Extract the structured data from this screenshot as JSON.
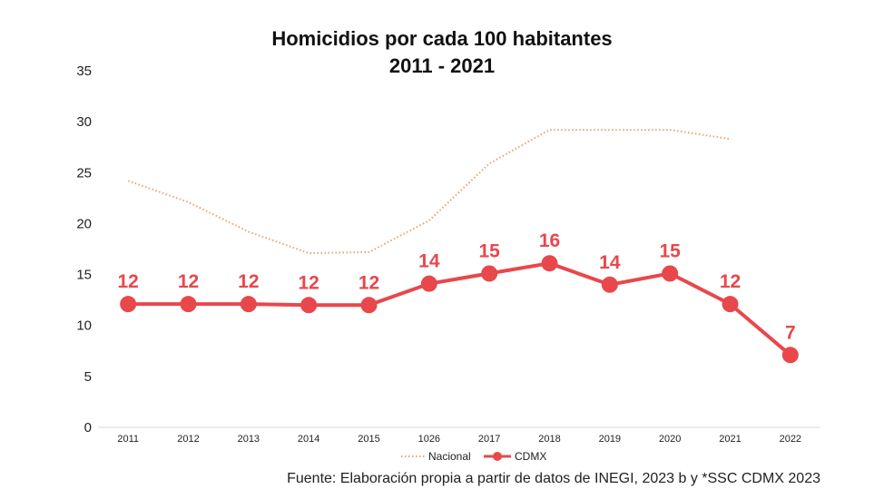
{
  "chart_data": {
    "type": "line",
    "title": "Homicidios por cada 100 habitantes",
    "subtitle": "2011 - 2021",
    "categories": [
      "2011",
      "2012",
      "2013",
      "2014",
      "2015",
      "1026",
      "2017",
      "2018",
      "2019",
      "2020",
      "2021",
      "2022"
    ],
    "ylim": [
      0,
      35
    ],
    "yticks": [
      0,
      5,
      10,
      15,
      20,
      25,
      30,
      35
    ],
    "grid": false,
    "legend_position": "bottom",
    "series": [
      {
        "name": "Nacional",
        "style": "dotted",
        "color": "#E8A46E",
        "values": [
          24.2,
          22.1,
          19.2,
          17.1,
          17.2,
          20.3,
          25.9,
          29.2,
          29.2,
          29.2,
          28.3,
          null
        ],
        "labels": null
      },
      {
        "name": "CDMX",
        "style": "solid-markers",
        "color": "#E8474C",
        "values": [
          12.1,
          12.1,
          12.1,
          12.0,
          12.0,
          14.1,
          15.1,
          16.1,
          14.0,
          15.1,
          12.1,
          7.1
        ],
        "labels": [
          "12",
          "12",
          "12",
          "12",
          "12",
          "14",
          "15",
          "16",
          "14",
          "15",
          "12",
          "7"
        ]
      }
    ]
  },
  "source_note": "Fuente: Elaboración propia a partir de datos de INEGI, 2023 b y *SSC CDMX 2023"
}
